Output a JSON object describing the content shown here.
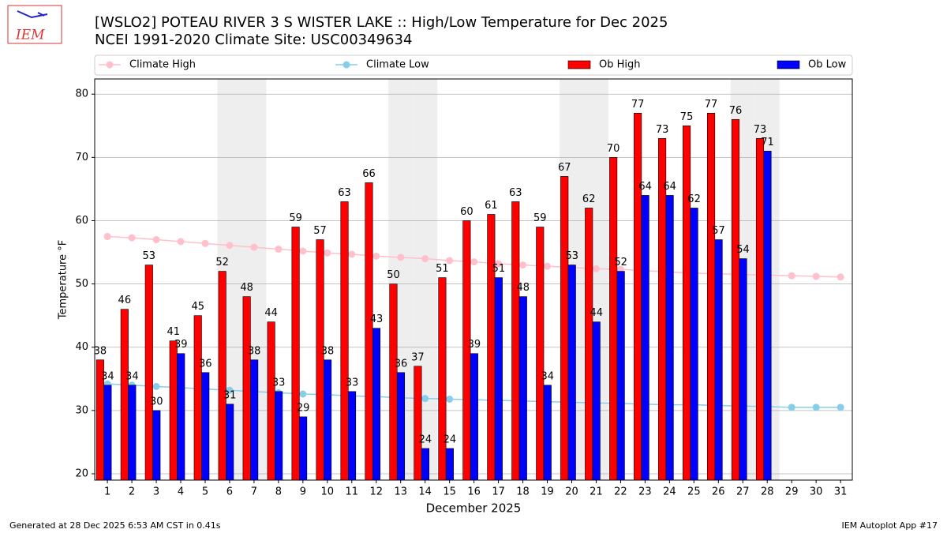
{
  "chart_data": {
    "type": "bar",
    "title": "[WSLO2] POTEAU RIVER 3 S WISTER LAKE :: High/Low Temperature for Dec 2025",
    "subtitle": "NCEI 1991-2020 Climate Site: USC00349634",
    "logo_text": "IEM",
    "xlabel": "December 2025",
    "ylabel": "Temperature °F",
    "footer_left": "Generated at 28 Dec 2025 6:53 AM CST in 0.41s",
    "footer_right": "IEM Autoplot App #17",
    "x": [
      1,
      2,
      3,
      4,
      5,
      6,
      7,
      8,
      9,
      10,
      11,
      12,
      13,
      14,
      15,
      16,
      17,
      18,
      19,
      20,
      21,
      22,
      23,
      24,
      25,
      26,
      27,
      28,
      29,
      30,
      31
    ],
    "series": [
      {
        "name": "Climate High",
        "type": "line",
        "color": "#ffc0cb",
        "values": [
          57.5,
          57.3,
          57.0,
          56.7,
          56.4,
          56.1,
          55.8,
          55.5,
          55.2,
          54.9,
          54.7,
          54.4,
          54.2,
          54.0,
          53.7,
          53.5,
          53.2,
          53.0,
          52.8,
          52.6,
          52.4,
          52.3,
          52.1,
          51.9,
          51.7,
          51.6,
          51.5,
          51.4,
          51.3,
          51.2,
          51.1
        ]
      },
      {
        "name": "Climate Low",
        "type": "line",
        "color": "#87ceeb",
        "values": [
          34.2,
          34.0,
          33.8,
          33.6,
          33.4,
          33.2,
          33.0,
          32.8,
          32.6,
          32.5,
          32.3,
          32.2,
          32.0,
          31.9,
          31.8,
          31.7,
          31.6,
          31.5,
          31.4,
          31.3,
          31.2,
          31.1,
          31.0,
          30.9,
          30.9,
          30.8,
          30.7,
          30.6,
          30.5,
          30.5,
          30.5
        ]
      },
      {
        "name": "Ob High",
        "type": "bar",
        "color": "#ff0000",
        "values": [
          38,
          46,
          53,
          41,
          45,
          52,
          48,
          44,
          59,
          57,
          63,
          66,
          50,
          37,
          51,
          60,
          61,
          63,
          59,
          67,
          62,
          70,
          77,
          73,
          75,
          77,
          76,
          73,
          null,
          null,
          null
        ]
      },
      {
        "name": "Ob Low",
        "type": "bar",
        "color": "#0000ff",
        "values": [
          34,
          34,
          30,
          39,
          36,
          31,
          38,
          33,
          29,
          38,
          33,
          43,
          36,
          24,
          24,
          39,
          51,
          48,
          34,
          53,
          44,
          52,
          64,
          64,
          62,
          57,
          54,
          71,
          null,
          null,
          null
        ]
      }
    ],
    "shaded_days": [
      6,
      7,
      13,
      14,
      20,
      21,
      27,
      28
    ],
    "xlim": [
      0.48,
      31.48
    ],
    "xticks": [
      1,
      2,
      3,
      4,
      5,
      6,
      7,
      8,
      9,
      10,
      11,
      12,
      13,
      14,
      15,
      16,
      17,
      18,
      19,
      20,
      21,
      22,
      23,
      24,
      25,
      26,
      27,
      28,
      29,
      30,
      31
    ],
    "ylim": [
      19,
      82.4
    ],
    "yticks": [
      20,
      30,
      40,
      50,
      60,
      70,
      80
    ],
    "grid": true
  }
}
